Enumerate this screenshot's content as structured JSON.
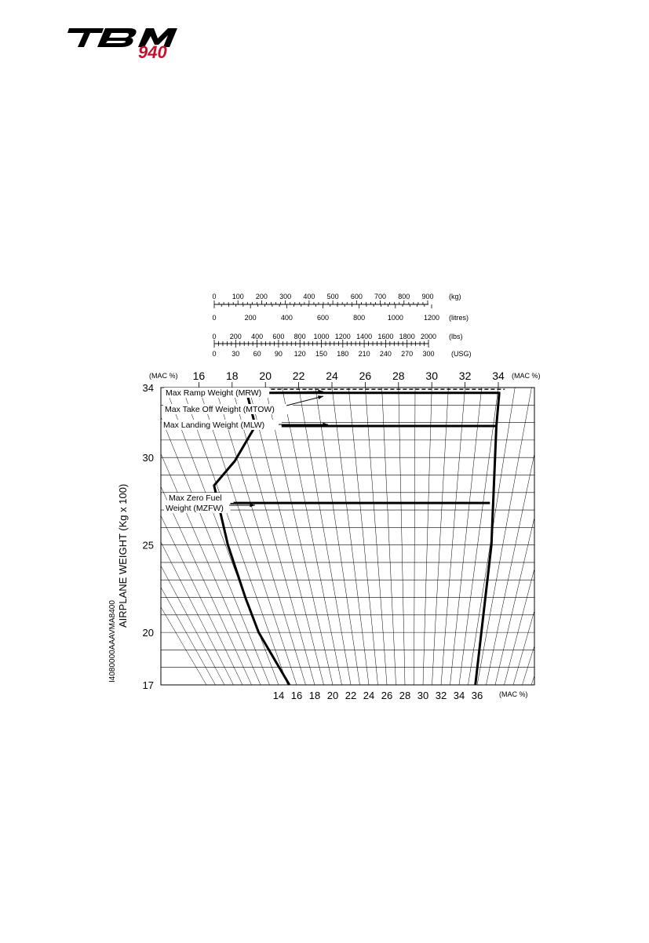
{
  "logo": {
    "brand": "TBM",
    "model": "940",
    "brand_color": "#000000",
    "model_color": "#c8102e"
  },
  "figure_id": "I4080000AAAVMA8400",
  "fuel_scales": [
    {
      "name": "kg",
      "unit": "(kg)",
      "min": 0,
      "max": 900,
      "step": 100,
      "labels": [
        "0",
        "100",
        "200",
        "300",
        "400",
        "500",
        "600",
        "700",
        "800",
        "900"
      ]
    },
    {
      "name": "litres",
      "unit": "(litres)",
      "min": 0,
      "max": 1200,
      "step": 200,
      "labels": [
        "0",
        "200",
        "400",
        "600",
        "800",
        "1000",
        "1200"
      ]
    },
    {
      "name": "lbs",
      "unit": "(lbs)",
      "min": 0,
      "max": 2000,
      "step": 200,
      "labels": [
        "0",
        "200",
        "400",
        "600",
        "800",
        "1000",
        "1200",
        "1400",
        "1600",
        "1800",
        "2000"
      ]
    },
    {
      "name": "usg",
      "unit": "(USG)",
      "min": 0,
      "max": 300,
      "step": 30,
      "labels": [
        "0",
        "30",
        "60",
        "90",
        "120",
        "150",
        "180",
        "210",
        "240",
        "270",
        "300"
      ]
    }
  ],
  "chart_data": {
    "type": "line",
    "ylabel": "AIRPLANE WEIGHT  (Kg x 100)",
    "ylim": [
      17,
      34
    ],
    "y_ticks": [
      "34",
      "30",
      "25",
      "20",
      "17"
    ],
    "y_tick_values": [
      34,
      30,
      25,
      20,
      17
    ],
    "mac_unit_label": "(MAC %)",
    "mac_top_ticks": [
      "16",
      "18",
      "20",
      "22",
      "24",
      "26",
      "28",
      "30",
      "32",
      "34"
    ],
    "mac_top_values": [
      16,
      18,
      20,
      22,
      24,
      26,
      28,
      30,
      32,
      34
    ],
    "mac_bottom_ticks": [
      "14",
      "16",
      "18",
      "20",
      "22",
      "24",
      "26",
      "28",
      "30",
      "32",
      "34",
      "36"
    ],
    "mac_bottom_values": [
      14,
      16,
      18,
      20,
      22,
      24,
      26,
      28,
      30,
      32,
      34,
      36
    ],
    "grid": true,
    "annotations": [
      {
        "text": "Max Ramp Weight (MRW)",
        "weight": 33.9
      },
      {
        "text": "Max Take Off Weight (MTOW)",
        "weight": 33.5
      },
      {
        "text": "Max Landing Weight (MLW)",
        "weight": 31.8
      },
      {
        "text": "Max Zero Fuel",
        "weight": 27.2
      },
      {
        "text": "Weight (MZFW)",
        "weight": 27.2
      }
    ],
    "series": [
      {
        "type": "envelope",
        "points": [
          [
            15.2,
            17
          ],
          [
            14.0,
            20
          ],
          [
            14.0,
            22
          ],
          [
            14.2,
            25
          ],
          [
            14.8,
            28.4
          ],
          [
            16.8,
            29.8
          ],
          [
            18.8,
            31.8
          ],
          [
            18.8,
            33.7
          ],
          [
            34.1,
            33.7
          ],
          [
            34.2,
            31.8
          ],
          [
            35.1,
            25
          ],
          [
            35.8,
            17
          ]
        ]
      },
      {
        "type": "mlw",
        "weight": 31.8,
        "from": 18.8,
        "to": 34.2
      },
      {
        "type": "mzfw",
        "weight": 27.4,
        "from": 14.3,
        "to": 34.5
      },
      {
        "type": "mrw_dashed",
        "weight": 33.9,
        "from": 18.8,
        "to": 34.4
      }
    ]
  }
}
